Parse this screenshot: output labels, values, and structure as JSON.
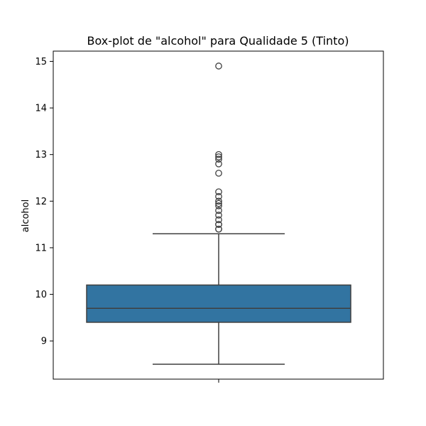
{
  "chart_data": {
    "type": "box",
    "title": "Box-plot de \"alcohol\" para Qualidade 5 (Tinto)",
    "xlabel": "",
    "ylabel": "alcohol",
    "ylim": [
      8.18,
      15.22
    ],
    "yticks": [
      9,
      10,
      11,
      12,
      13,
      14,
      15
    ],
    "grid": false,
    "box_color": "#3274a1",
    "line_color": "#3f3f3f",
    "box": {
      "whisker_low": 8.5,
      "q1": 9.4,
      "median": 9.7,
      "q3": 10.2,
      "whisker_high": 11.3
    },
    "outliers": [
      11.4,
      11.4,
      11.5,
      11.5,
      11.6,
      11.7,
      11.8,
      11.9,
      11.95,
      12.0,
      12.1,
      12.2,
      12.6,
      12.8,
      12.9,
      12.95,
      13.0,
      14.9
    ]
  }
}
